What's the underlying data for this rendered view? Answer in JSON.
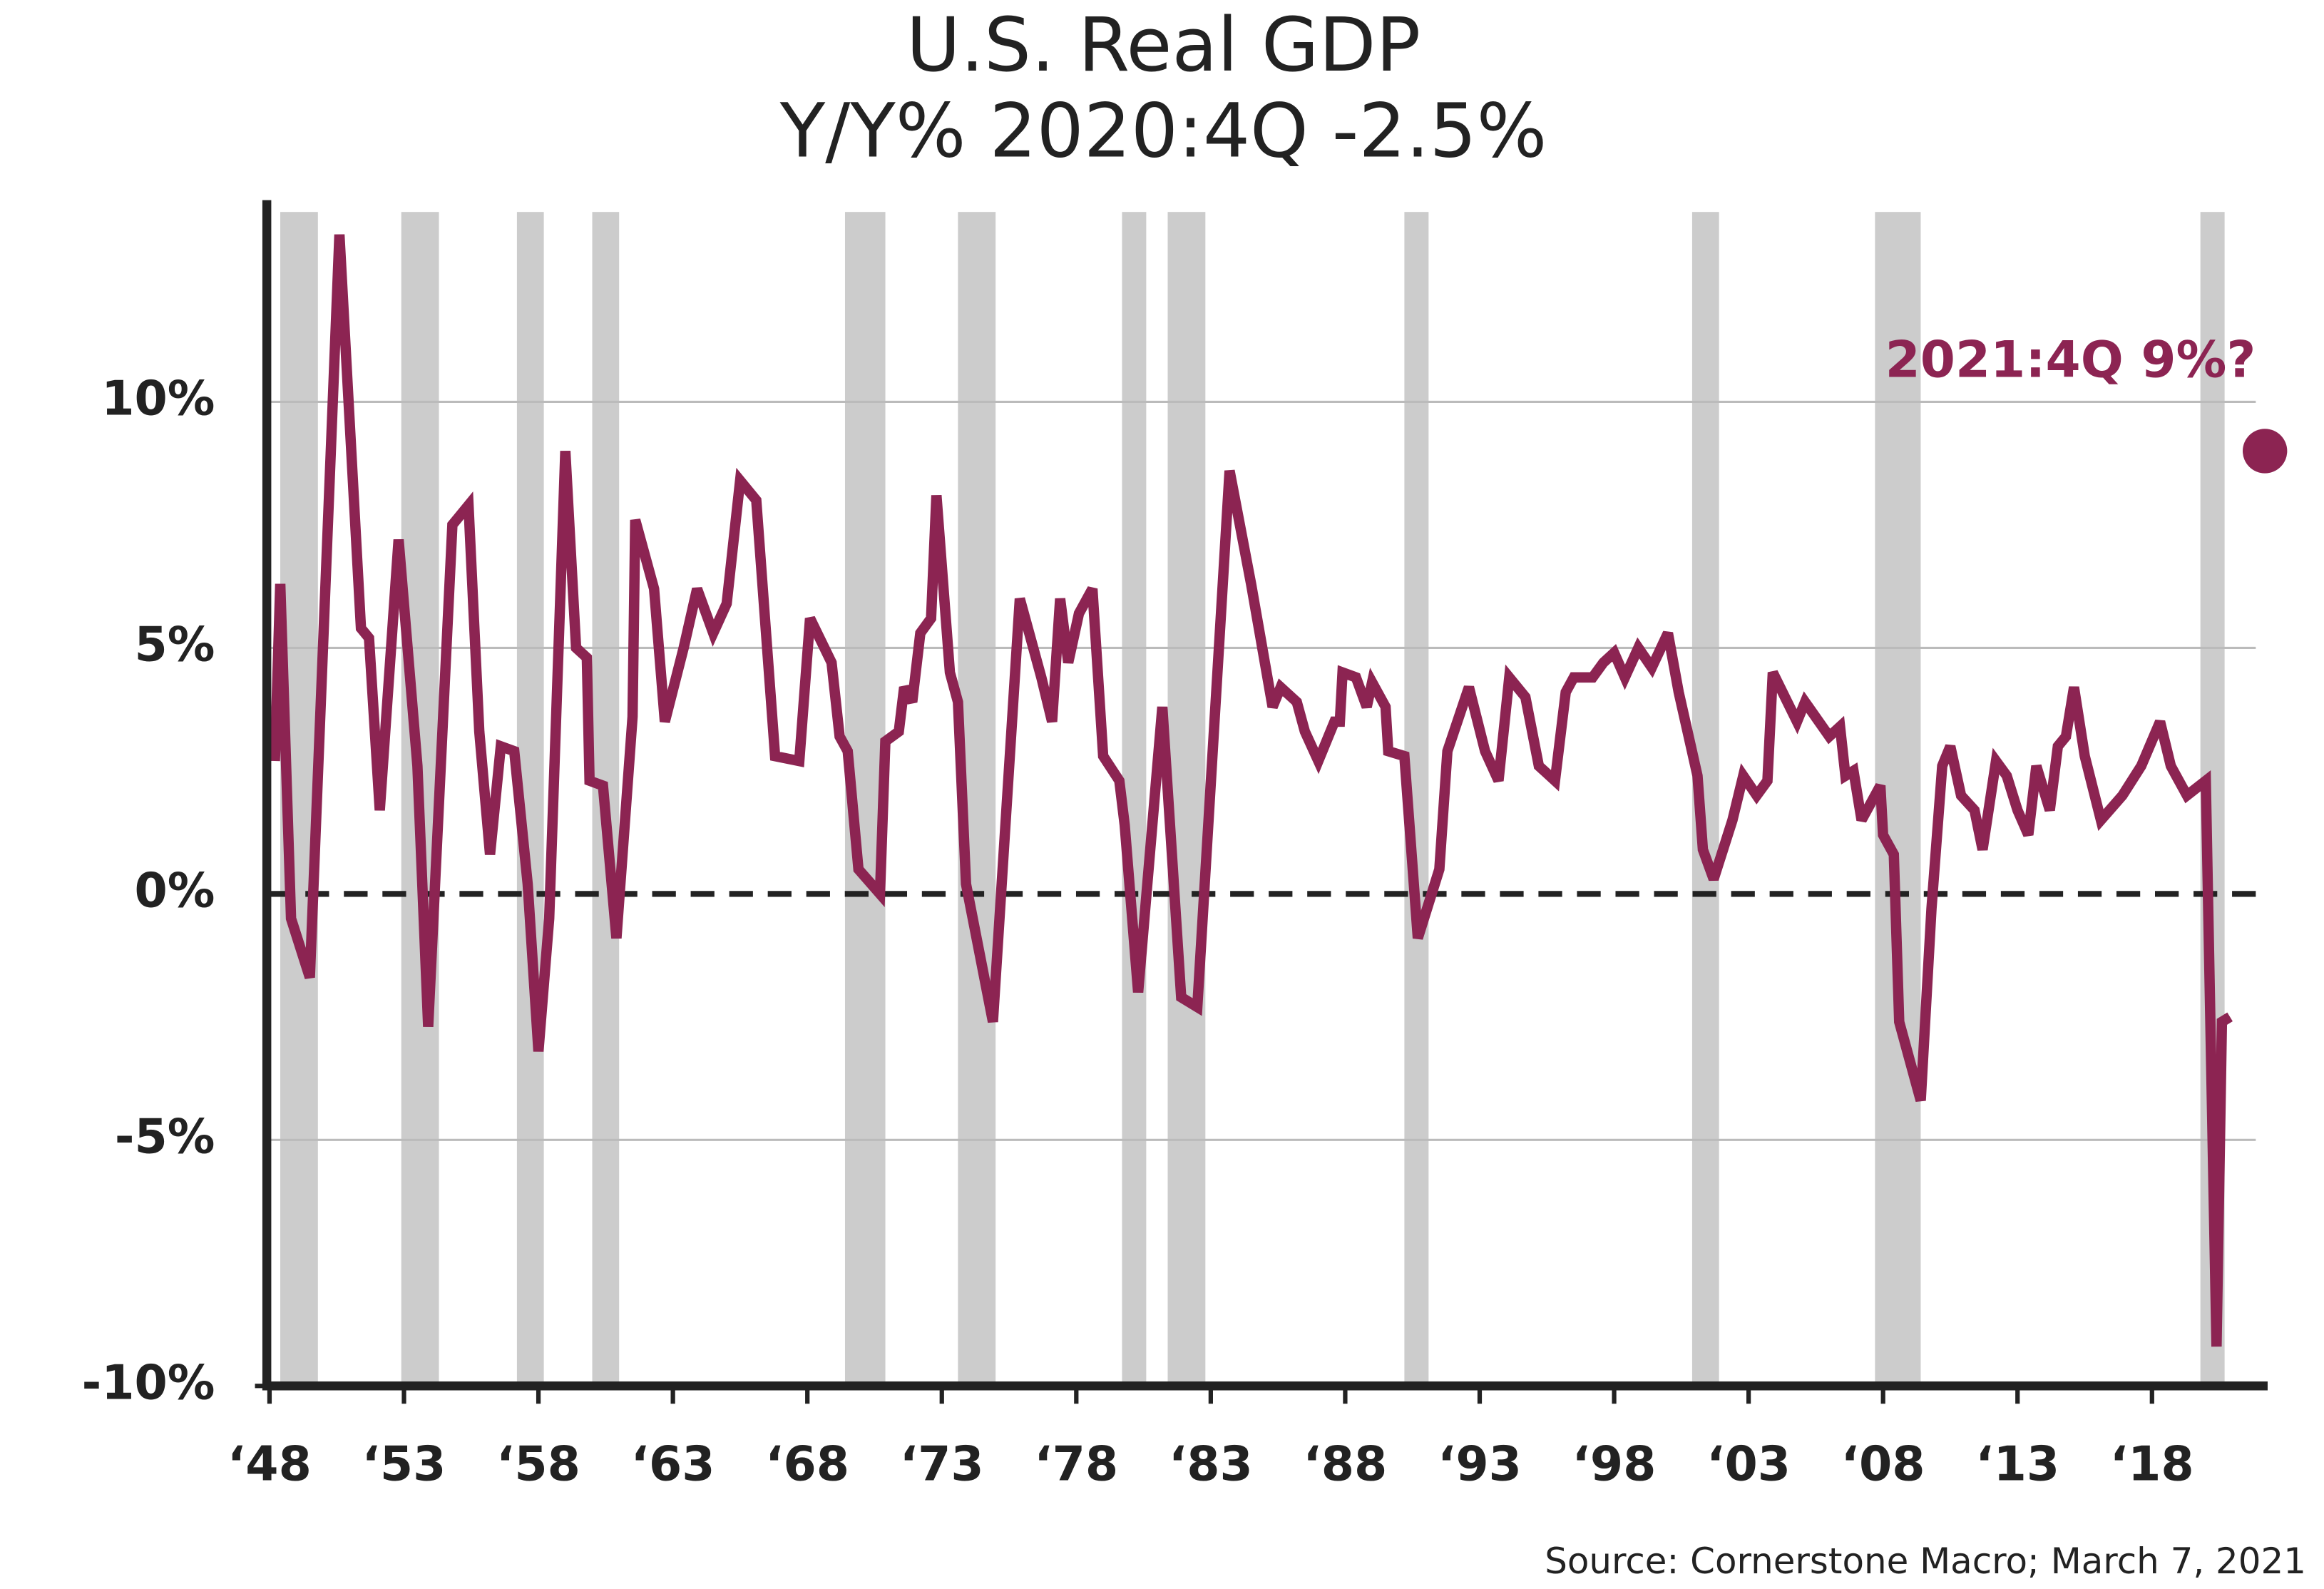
{
  "chart_data": {
    "type": "line",
    "title": "U.S. Real GDP",
    "subtitle": "Y/Y% 2020:4Q -2.5%",
    "source": "Source: Cornerstone Macro; March 7, 2021",
    "color": "#8c2452",
    "recession_color": "#cccccc",
    "grid": true,
    "x": [
      1948.2,
      1948.4,
      1948.8,
      1949.5,
      1950.6,
      1951.4,
      1951.7,
      1952.1,
      1952.8,
      1953.5,
      1953.9,
      1954.8,
      1955.4,
      1955.8,
      1956.2,
      1956.6,
      1957.1,
      1957.6,
      1958.0,
      1958.4,
      1959.0,
      1959.4,
      1959.8,
      1959.9,
      1960.4,
      1960.9,
      1961.5,
      1961.6,
      1962.3,
      1962.7,
      1963.4,
      1963.9,
      1964.5,
      1965.0,
      1965.5,
      1966.1,
      1966.8,
      1967.7,
      1968.1,
      1968.9,
      1969.2,
      1969.5,
      1969.9,
      1970.7,
      1970.9,
      1971.4,
      1971.6,
      1971.9,
      1972.2,
      1972.6,
      1972.8,
      1973.3,
      1973.6,
      1973.9,
      1974.9,
      1975.9,
      1976.7,
      1977.1,
      1977.4,
      1977.7,
      1978.1,
      1978.6,
      1979.0,
      1979.6,
      1979.8,
      1980.3,
      1981.2,
      1981.9,
      1982.5,
      1983.7,
      1984.5,
      1985.3,
      1985.6,
      1986.2,
      1986.5,
      1987.0,
      1987.6,
      1987.8,
      1987.9,
      1988.4,
      1988.8,
      1989.0,
      1989.5,
      1989.6,
      1990.2,
      1990.7,
      1991.5,
      1991.8,
      1992.6,
      1993.2,
      1993.7,
      1994.1,
      1994.7,
      1995.2,
      1995.8,
      1996.2,
      1996.5,
      1997.2,
      1997.6,
      1998.0,
      1998.4,
      1998.9,
      1999.4,
      2000.0,
      2000.4,
      2001.1,
      2001.3,
      2001.7,
      2002.4,
      2002.8,
      2003.3,
      2003.7,
      2003.9,
      2004.8,
      2005.1,
      2006.0,
      2006.4,
      2006.6,
      2006.9,
      2007.2,
      2007.9,
      2008.0,
      2008.4,
      2008.6,
      2009.4,
      2009.8,
      2010.2,
      2010.5,
      2010.9,
      2011.4,
      2011.7,
      2012.2,
      2012.6,
      2013.0,
      2013.4,
      2013.7,
      2014.2,
      2014.5,
      2014.8,
      2015.1,
      2015.5,
      2016.1,
      2016.9,
      2017.6,
      2018.3,
      2018.7,
      2019.3,
      2020.0,
      2020.4,
      2020.6,
      2020.9
    ],
    "values": [
      2.7,
      6.3,
      -0.5,
      -1.7,
      13.4,
      5.4,
      5.2,
      1.7,
      7.2,
      2.6,
      -2.7,
      7.5,
      7.9,
      3.3,
      0.8,
      3.0,
      2.9,
      0.2,
      -3.2,
      -0.5,
      9.0,
      5.0,
      4.8,
      2.3,
      2.2,
      -0.9,
      3.6,
      7.6,
      6.2,
      3.5,
      5.0,
      6.2,
      5.3,
      5.9,
      8.4,
      8.0,
      2.8,
      2.7,
      5.6,
      4.7,
      3.2,
      2.9,
      0.5,
      0.0,
      3.1,
      3.3,
      4.2,
      3.9,
      5.3,
      5.6,
      8.1,
      4.5,
      3.9,
      0.2,
      -2.6,
      6.0,
      4.4,
      3.5,
      6.0,
      4.7,
      5.7,
      6.2,
      2.8,
      2.3,
      1.4,
      -2.0,
      3.8,
      -2.1,
      -2.3,
      8.6,
      6.3,
      3.8,
      4.2,
      3.9,
      3.3,
      2.7,
      3.5,
      3.5,
      4.5,
      4.4,
      3.8,
      4.3,
      3.8,
      2.9,
      2.8,
      -0.9,
      0.5,
      2.9,
      4.2,
      2.9,
      2.3,
      4.4,
      4.0,
      2.6,
      2.3,
      4.1,
      4.4,
      4.4,
      4.7,
      4.9,
      4.4,
      5.0,
      4.6,
      5.3,
      4.1,
      2.4,
      0.9,
      0.3,
      1.5,
      2.4,
      2.0,
      2.3,
      4.5,
      3.5,
      3.9,
      3.2,
      3.4,
      2.4,
      2.5,
      1.5,
      2.2,
      1.2,
      0.8,
      -2.6,
      -4.2,
      -0.3,
      2.6,
      3.0,
      2.0,
      1.7,
      0.9,
      2.7,
      2.4,
      1.7,
      1.2,
      2.6,
      1.7,
      3.0,
      3.2,
      4.2,
      2.8,
      1.5,
      2.0,
      2.6,
      3.5,
      2.6,
      2.0,
      2.3,
      -9.2,
      -2.6,
      -2.5
    ],
    "recessions": [
      [
        1948.4,
        1949.8
      ],
      [
        1952.9,
        1954.3
      ],
      [
        1957.2,
        1958.2
      ],
      [
        1960.0,
        1961.0
      ],
      [
        1969.4,
        1970.9
      ],
      [
        1973.6,
        1975.0
      ],
      [
        1979.7,
        1980.6
      ],
      [
        1981.4,
        1982.8
      ],
      [
        1990.2,
        1991.1
      ],
      [
        2000.9,
        2001.9
      ],
      [
        2007.7,
        2009.4
      ],
      [
        2019.8,
        2020.7
      ]
    ],
    "annotation": {
      "label": "2021:4Q 9%?",
      "x": 2022.2,
      "y": 9
    },
    "xlim": [
      1947.9,
      2022.3
    ],
    "ylim": [
      -10,
      14.1
    ],
    "yticks": [
      {
        "value": -10,
        "label": "-10%"
      },
      {
        "value": -5,
        "label": "-5%"
      },
      {
        "value": 0,
        "label": "0%"
      },
      {
        "value": 5,
        "label": "5%"
      },
      {
        "value": 10,
        "label": "10%"
      }
    ],
    "xticks": [
      {
        "value": 1948,
        "label": "‘48"
      },
      {
        "value": 1953,
        "label": "‘53"
      },
      {
        "value": 1958,
        "label": "‘58"
      },
      {
        "value": 1963,
        "label": "‘63"
      },
      {
        "value": 1968,
        "label": "‘68"
      },
      {
        "value": 1973,
        "label": "‘73"
      },
      {
        "value": 1978,
        "label": "‘78"
      },
      {
        "value": 1983,
        "label": "‘83"
      },
      {
        "value": 1988,
        "label": "‘88"
      },
      {
        "value": 1993,
        "label": "‘93"
      },
      {
        "value": 1998,
        "label": "‘98"
      },
      {
        "value": 2003,
        "label": "‘03"
      },
      {
        "value": 2008,
        "label": "‘08"
      },
      {
        "value": 2013,
        "label": "‘13"
      },
      {
        "value": 2018,
        "label": "‘18"
      }
    ]
  }
}
